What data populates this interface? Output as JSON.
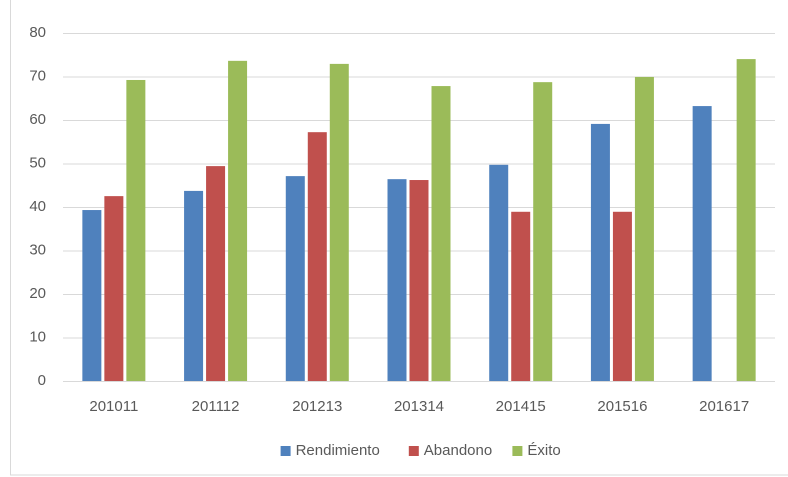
{
  "chart_data": {
    "type": "bar",
    "categories": [
      "201011",
      "201112",
      "201213",
      "201314",
      "201415",
      "201516",
      "201617"
    ],
    "series": [
      {
        "name": "Rendimiento",
        "color": "#4f81bd",
        "values": [
          39.3,
          43.7,
          47.1,
          46.4,
          49.7,
          59.1,
          63.2
        ]
      },
      {
        "name": "Abandono",
        "color": "#c0504d",
        "values": [
          42.5,
          49.4,
          57.2,
          46.2,
          38.9,
          38.9,
          null
        ]
      },
      {
        "name": "Éxito",
        "color": "#9bbb59",
        "values": [
          69.2,
          73.6,
          72.9,
          67.8,
          68.7,
          69.9,
          74.0
        ]
      }
    ],
    "ylim": [
      0,
      80
    ],
    "yticks": [
      0,
      10,
      20,
      30,
      40,
      50,
      60,
      70,
      80
    ],
    "grid": true,
    "legend": "bottom"
  }
}
